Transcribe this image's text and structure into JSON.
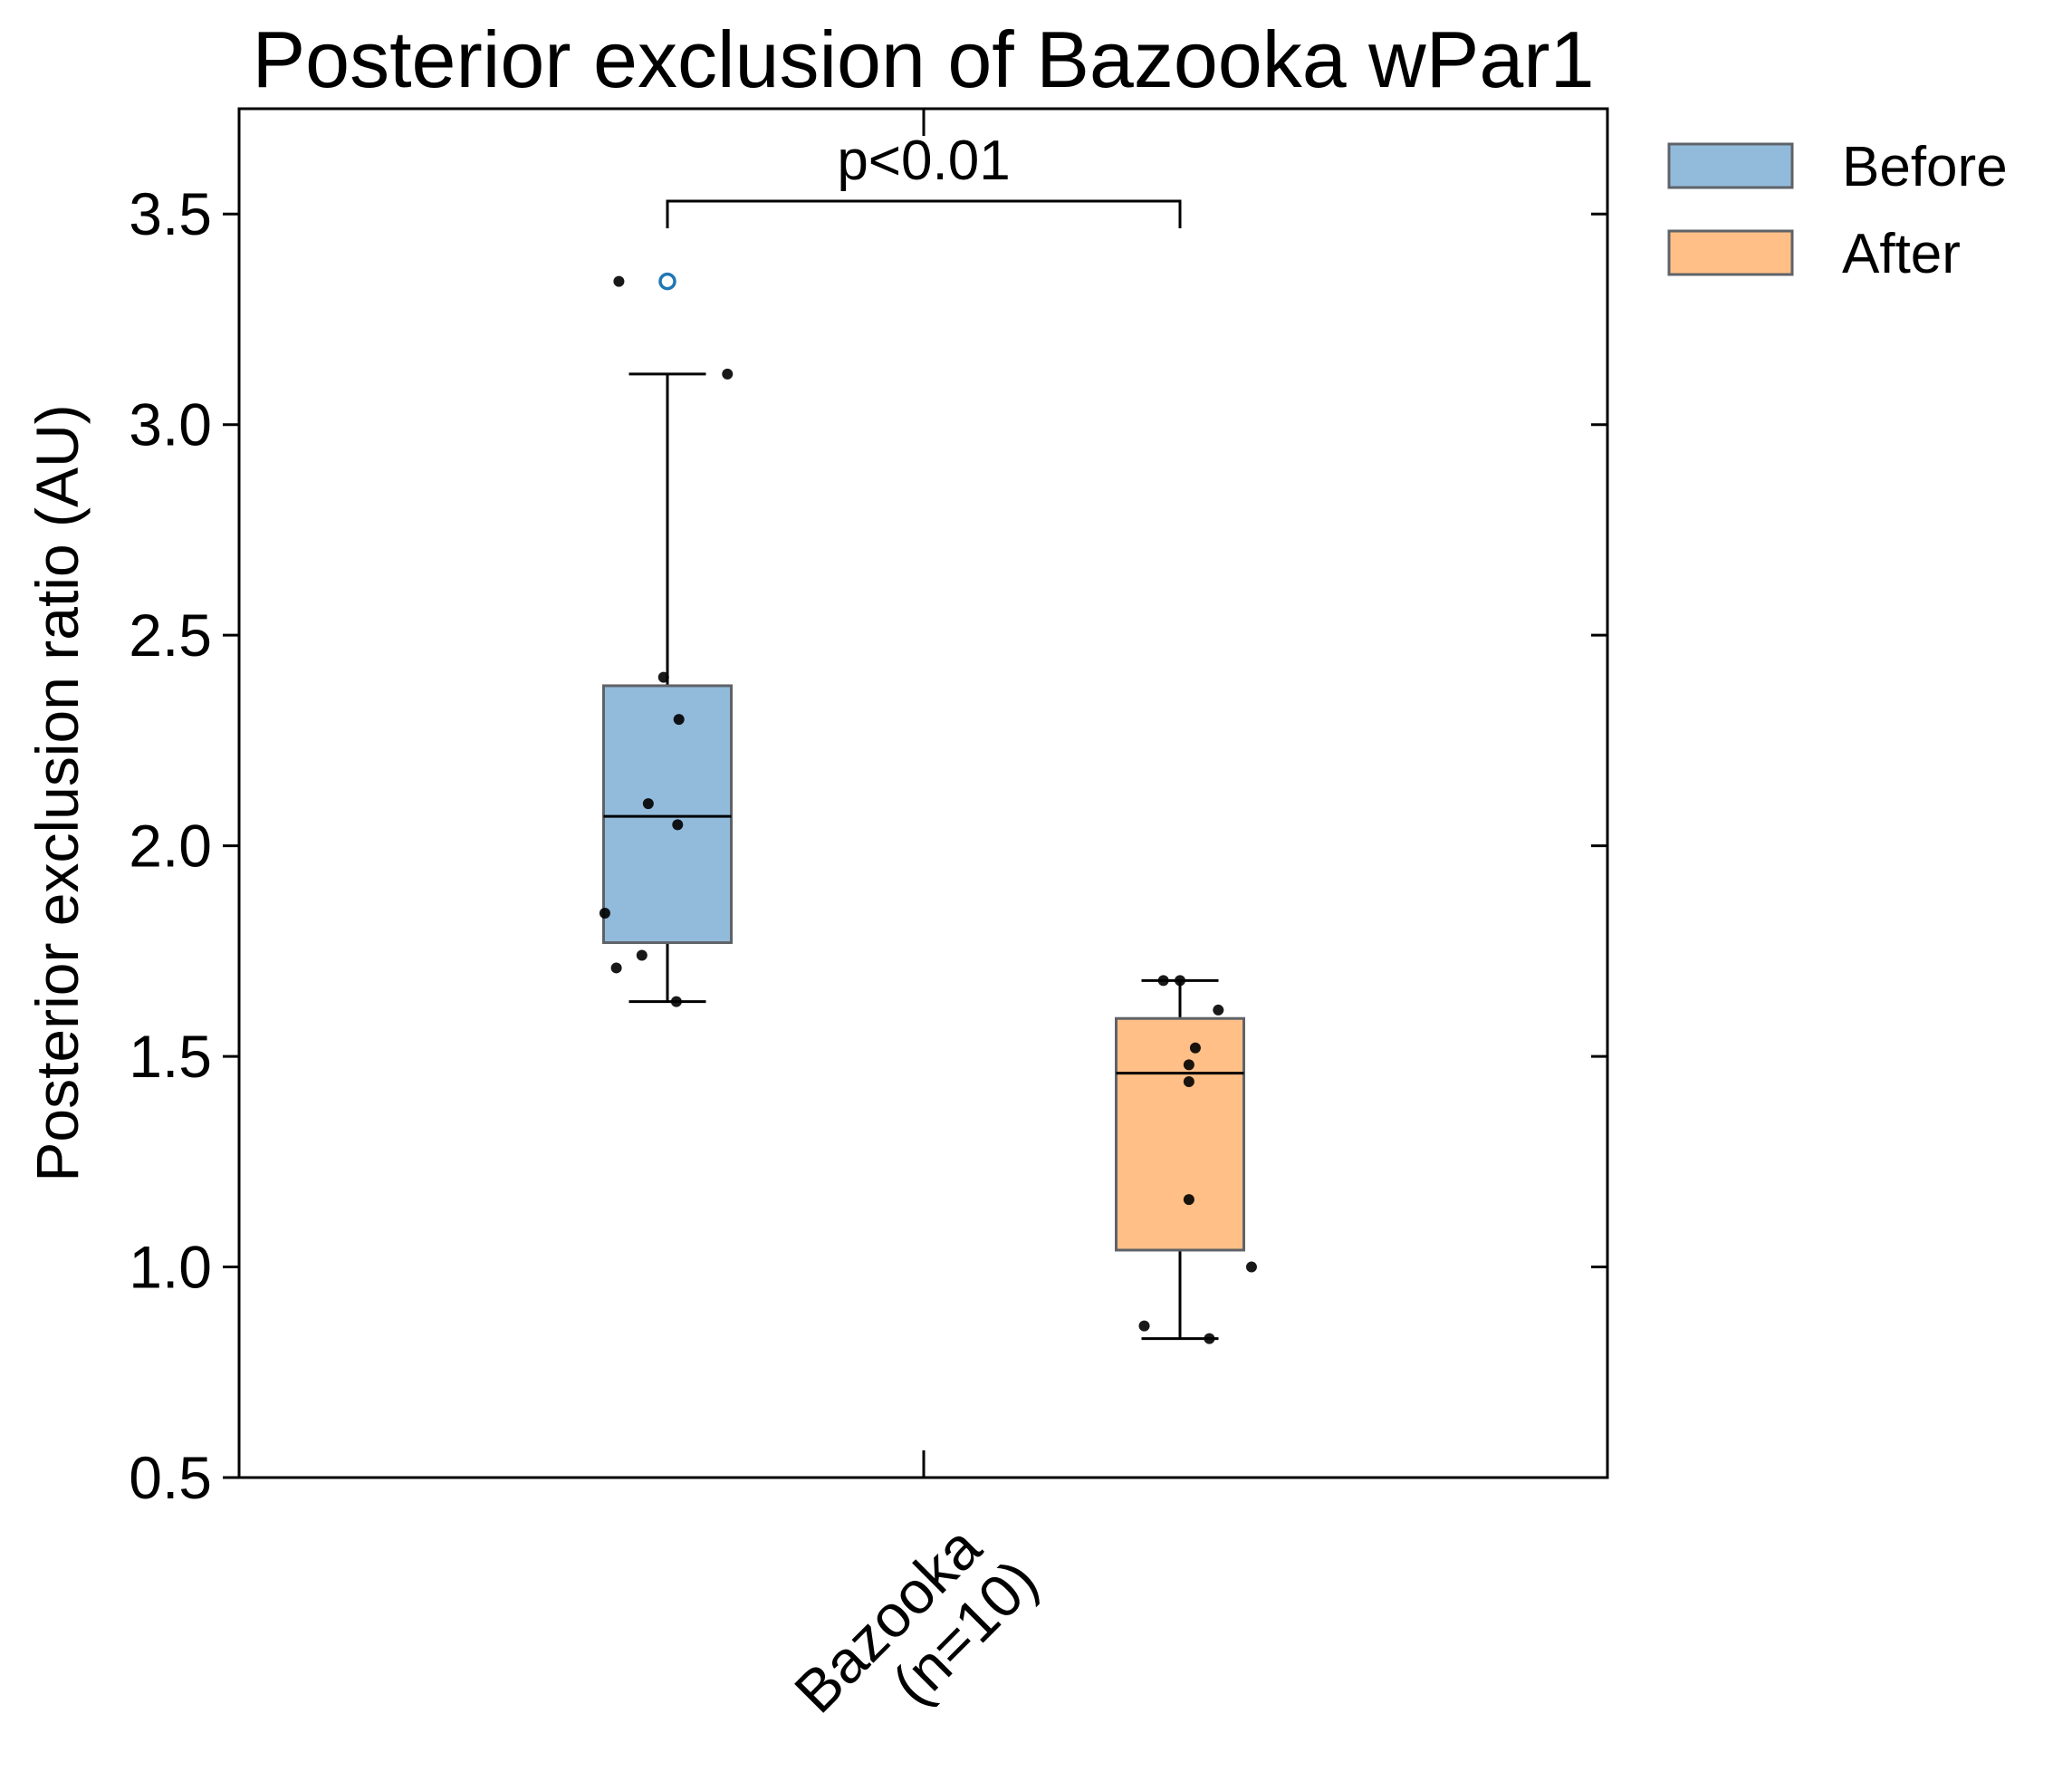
{
  "chart_data": {
    "type": "box",
    "title": "Posterior exclusion of Bazooka wPar1",
    "ylabel": "Posterior exclusion ratio (AU)",
    "xlabel": "",
    "ylim": [
      0.5,
      3.75
    ],
    "yticks": [
      "0.5",
      "1.0",
      "1.5",
      "2.0",
      "2.5",
      "3.0",
      "3.5"
    ],
    "categories": [
      {
        "line1": "Bazooka",
        "line2": "(n=10)"
      }
    ],
    "annotation": {
      "text": "p<0.01"
    },
    "legend": {
      "placement": "outside-top-right"
    },
    "series": [
      {
        "name": "Before",
        "color": "#1f77b4",
        "fill": "#92bbdb",
        "box": {
          "whisker_low": 1.63,
          "q1": 1.77,
          "median": 2.07,
          "q3": 2.38,
          "whisker_high": 3.12
        },
        "outliers": [
          3.34
        ],
        "points": [
          {
            "y": 3.34,
            "jitter": -0.38
          },
          {
            "y": 3.12,
            "jitter": 0.47
          },
          {
            "y": 2.4,
            "jitter": -0.03
          },
          {
            "y": 2.3,
            "jitter": 0.09
          },
          {
            "y": 2.1,
            "jitter": -0.15
          },
          {
            "y": 2.05,
            "jitter": 0.08
          },
          {
            "y": 1.84,
            "jitter": -0.49
          },
          {
            "y": 1.74,
            "jitter": -0.2
          },
          {
            "y": 1.71,
            "jitter": -0.4
          },
          {
            "y": 1.63,
            "jitter": 0.07
          }
        ]
      },
      {
        "name": "After",
        "color": "#ff7f0e",
        "fill": "#ffbf86",
        "box": {
          "whisker_low": 0.83,
          "q1": 1.04,
          "median": 1.46,
          "q3": 1.59,
          "whisker_high": 1.68
        },
        "outliers": [],
        "points": [
          {
            "y": 1.68,
            "jitter": -0.13
          },
          {
            "y": 1.68,
            "jitter": 0.0
          },
          {
            "y": 1.61,
            "jitter": 0.3
          },
          {
            "y": 1.52,
            "jitter": 0.12
          },
          {
            "y": 1.48,
            "jitter": 0.07
          },
          {
            "y": 1.44,
            "jitter": 0.07
          },
          {
            "y": 1.16,
            "jitter": 0.07
          },
          {
            "y": 1.0,
            "jitter": 0.56
          },
          {
            "y": 0.86,
            "jitter": -0.28
          },
          {
            "y": 0.83,
            "jitter": 0.23
          }
        ]
      }
    ]
  }
}
